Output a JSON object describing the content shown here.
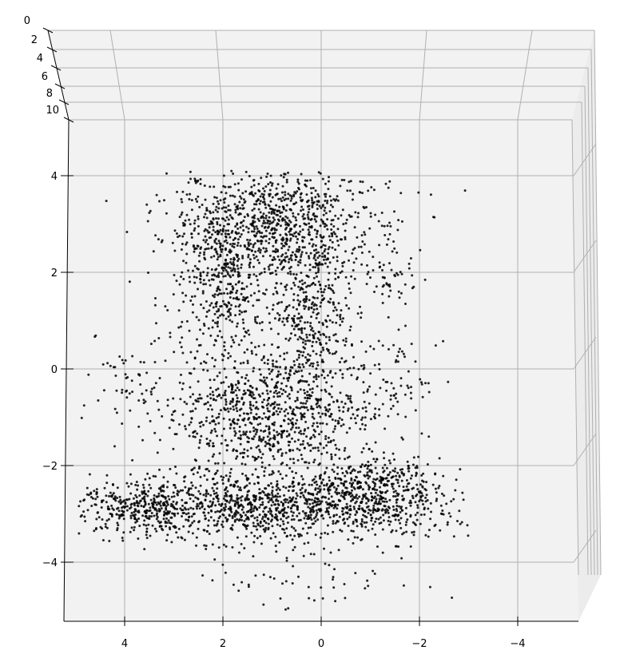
{
  "chart_data": {
    "type": "scatter",
    "projection": "3d",
    "title": "",
    "xlabel": "",
    "ylabel": "",
    "zlabel": "",
    "xlim": [
      5.2,
      -5.2
    ],
    "ylim": [
      -5.2,
      4.8
    ],
    "zlim": [
      0,
      11
    ],
    "x_ticks": [
      "4",
      "2",
      "0",
      "−2",
      "−4"
    ],
    "y_ticks": [
      "4",
      "2",
      "0",
      "−2",
      "−4"
    ],
    "z_ticks": [
      "0",
      "2",
      "4",
      "6",
      "8",
      "10"
    ],
    "grid": true,
    "pane_color": "#f2f2f2",
    "grid_color": "#b0b0b0",
    "point_color": "#000000",
    "series": [
      {
        "name": "",
        "clusters": [
          {
            "cx": 0.9,
            "cy": 3.0,
            "sx": 1.1,
            "sy": 0.6,
            "n": 900
          },
          {
            "cx": 2.0,
            "cy": 1.6,
            "sx": 0.5,
            "sy": 0.9,
            "n": 420
          },
          {
            "cx": 0.15,
            "cy": 1.3,
            "sx": 0.4,
            "sy": 0.8,
            "n": 360
          },
          {
            "cx": 0.9,
            "cy": -0.9,
            "sx": 1.0,
            "sy": 0.7,
            "n": 900
          },
          {
            "cx": 1.0,
            "cy": -2.85,
            "sx": 1.9,
            "sy": 0.35,
            "n": 1300
          },
          {
            "cx": -1.3,
            "cy": -2.4,
            "sx": 0.6,
            "sy": 0.35,
            "n": 260
          },
          {
            "cx": 3.8,
            "cy": -2.9,
            "sx": 0.6,
            "sy": 0.25,
            "n": 200
          },
          {
            "cx": 0.4,
            "cy": -4.3,
            "sx": 1.2,
            "sy": 0.4,
            "n": 60
          },
          {
            "cx": 3.8,
            "cy": -0.2,
            "sx": 0.6,
            "sy": 0.5,
            "n": 70
          },
          {
            "cx": -1.5,
            "cy": -0.3,
            "sx": 0.4,
            "sy": 0.5,
            "n": 60
          },
          {
            "cx": -1.4,
            "cy": 1.8,
            "sx": 0.3,
            "sy": 0.3,
            "n": 40
          }
        ]
      }
    ]
  }
}
